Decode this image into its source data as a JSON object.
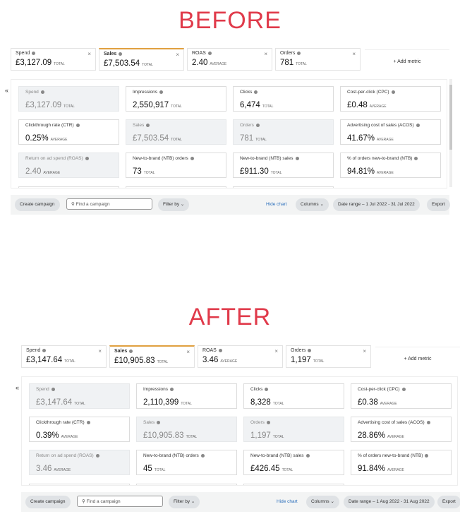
{
  "headings": {
    "before": "BEFORE",
    "after": "AFTER"
  },
  "colors": {
    "heading": "#e03a4a",
    "selected_tab": "#e0a040"
  },
  "panels": [
    {
      "tabs": [
        {
          "label": "Spend",
          "value": "£3,127.09",
          "unit": "TOTAL",
          "selected": false
        },
        {
          "label": "Sales",
          "value": "£7,503.54",
          "unit": "TOTAL",
          "selected": true
        },
        {
          "label": "ROAS",
          "value": "2.40",
          "unit": "AVERAGE",
          "selected": false
        },
        {
          "label": "Orders",
          "value": "781",
          "unit": "TOTAL",
          "selected": false
        }
      ],
      "add_metric": "+ Add metric",
      "cards": [
        {
          "label": "Spend",
          "value": "£3,127.09",
          "unit": "TOTAL",
          "disabled": true
        },
        {
          "label": "Impressions",
          "value": "2,550,917",
          "unit": "TOTAL",
          "disabled": false
        },
        {
          "label": "Clicks",
          "value": "6,474",
          "unit": "TOTAL",
          "disabled": false
        },
        {
          "label": "Cost-per-click (CPC)",
          "value": "£0.48",
          "unit": "AVERAGE",
          "disabled": false
        },
        {
          "label": "Clickthrough rate (CTR)",
          "value": "0.25%",
          "unit": "AVERAGE",
          "disabled": false
        },
        {
          "label": "Sales",
          "value": "£7,503.54",
          "unit": "TOTAL",
          "disabled": true
        },
        {
          "label": "Orders",
          "value": "781",
          "unit": "TOTAL",
          "disabled": true
        },
        {
          "label": "Advertising cost of sales (ACOS)",
          "value": "41.67%",
          "unit": "AVERAGE",
          "disabled": false
        },
        {
          "label": "Return on ad spend (ROAS)",
          "value": "2.40",
          "unit": "AVERAGE",
          "disabled": true
        },
        {
          "label": "New-to-brand (NTB) orders",
          "value": "73",
          "unit": "TOTAL",
          "disabled": false
        },
        {
          "label": "New-to-brand (NTB) sales",
          "value": "£911.30",
          "unit": "TOTAL",
          "disabled": false
        },
        {
          "label": "% of orders new-to-brand (NTB)",
          "value": "94.81%",
          "unit": "AVERAGE",
          "disabled": false
        }
      ],
      "toolbar": {
        "create": "Create campaign",
        "search_placeholder": "Find a campaign",
        "filter": "Filter by",
        "hide_chart": "Hide chart",
        "columns": "Columns",
        "date_range": "Date range – 1 Jul 2022 - 31 Jul 2022",
        "export": "Export"
      }
    },
    {
      "tabs": [
        {
          "label": "Spend",
          "value": "£3,147.64",
          "unit": "TOTAL",
          "selected": false
        },
        {
          "label": "Sales",
          "value": "£10,905.83",
          "unit": "TOTAL",
          "selected": true
        },
        {
          "label": "ROAS",
          "value": "3.46",
          "unit": "AVERAGE",
          "selected": false
        },
        {
          "label": "Orders",
          "value": "1,197",
          "unit": "TOTAL",
          "selected": false
        }
      ],
      "add_metric": "+ Add metric",
      "cards": [
        {
          "label": "Spend",
          "value": "£3,147.64",
          "unit": "TOTAL",
          "disabled": true
        },
        {
          "label": "Impressions",
          "value": "2,110,399",
          "unit": "TOTAL",
          "disabled": false
        },
        {
          "label": "Clicks",
          "value": "8,328",
          "unit": "TOTAL",
          "disabled": false
        },
        {
          "label": "Cost-per-click (CPC)",
          "value": "£0.38",
          "unit": "AVERAGE",
          "disabled": false
        },
        {
          "label": "Clickthrough rate (CTR)",
          "value": "0.39%",
          "unit": "AVERAGE",
          "disabled": false
        },
        {
          "label": "Sales",
          "value": "£10,905.83",
          "unit": "TOTAL",
          "disabled": true
        },
        {
          "label": "Orders",
          "value": "1,197",
          "unit": "TOTAL",
          "disabled": true
        },
        {
          "label": "Advertising cost of sales (ACOS)",
          "value": "28.86%",
          "unit": "AVERAGE",
          "disabled": false
        },
        {
          "label": "Return on ad spend (ROAS)",
          "value": "3.46",
          "unit": "AVERAGE",
          "disabled": true
        },
        {
          "label": "New-to-brand (NTB) orders",
          "value": "45",
          "unit": "TOTAL",
          "disabled": false
        },
        {
          "label": "New-to-brand (NTB) sales",
          "value": "£426.45",
          "unit": "TOTAL",
          "disabled": false
        },
        {
          "label": "% of orders new-to-brand (NTB)",
          "value": "91.84%",
          "unit": "AVERAGE",
          "disabled": false
        }
      ],
      "toolbar": {
        "create": "Create campaign",
        "search_placeholder": "Find a campaign",
        "filter": "Filter by",
        "hide_chart": "Hide chart",
        "columns": "Columns",
        "date_range": "Date range – 1 Aug 2022 - 31 Aug 2022",
        "export": "Export"
      }
    }
  ]
}
